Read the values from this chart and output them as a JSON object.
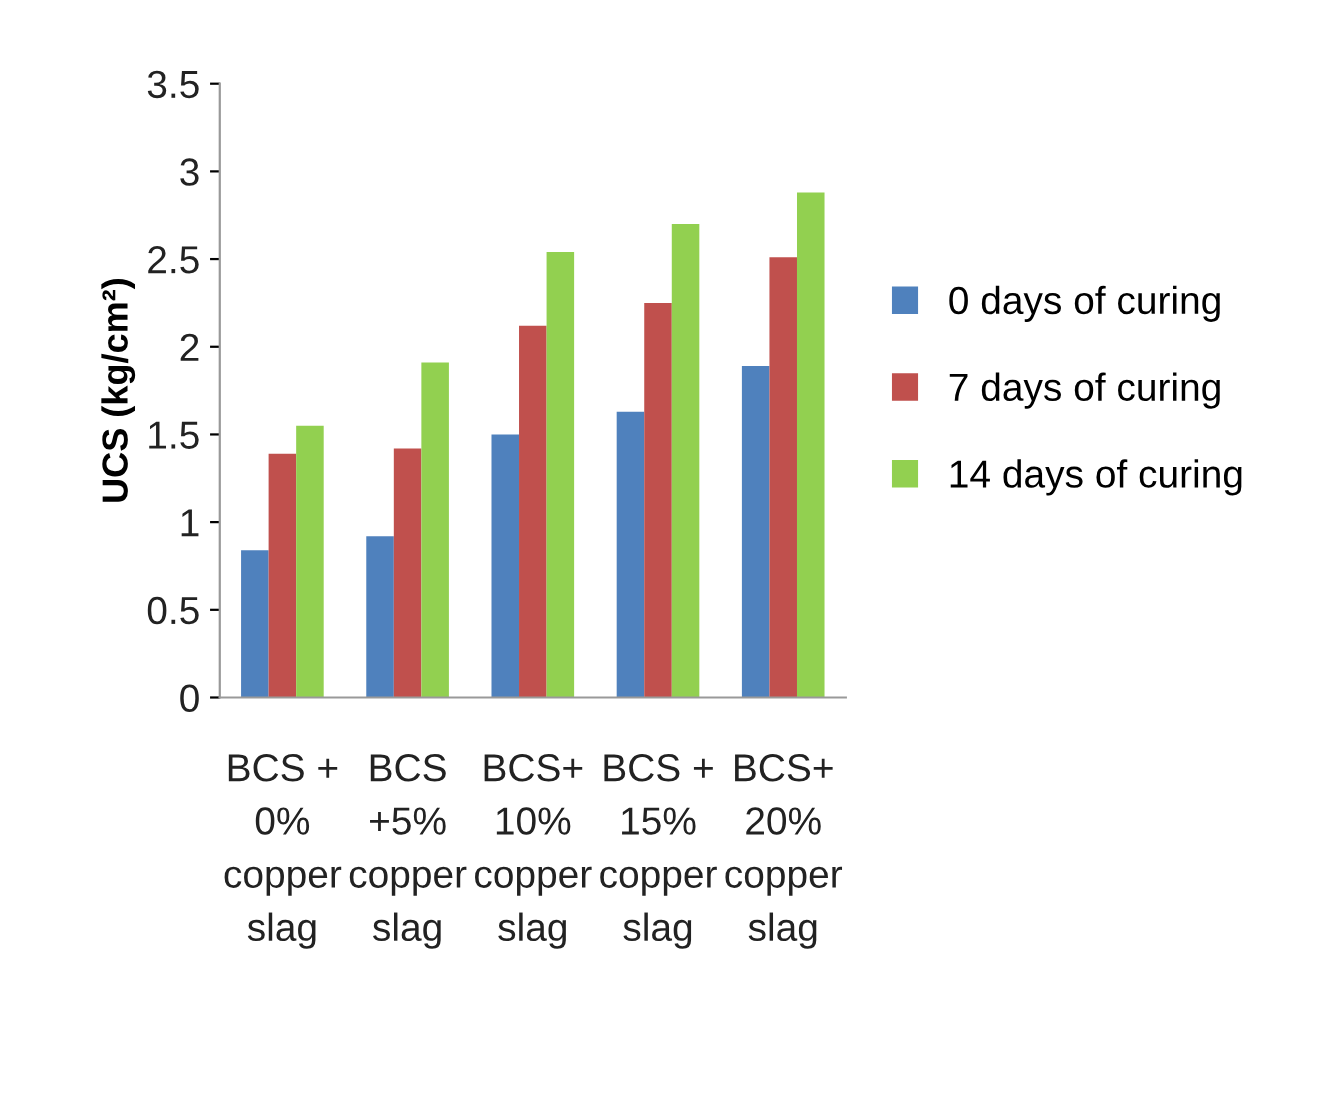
{
  "chart_data": {
    "type": "bar",
    "ylabel": "UCS (kg/cm²)",
    "categories": [
      "BCS +\n0%\ncopper\nslag",
      "BCS\n+5%\ncopper\nslag",
      "BCS+\n10%\ncopper\nslag",
      "BCS +\n15%\ncopper\nslag",
      "BCS+\n20%\ncopper\nslag"
    ],
    "series": [
      {
        "name": "0 days of curing",
        "color": "#4f81bd",
        "values": [
          0.84,
          0.92,
          1.5,
          1.63,
          1.89
        ]
      },
      {
        "name": "7 days of curing",
        "color": "#c0504d",
        "values": [
          1.39,
          1.42,
          2.12,
          2.25,
          2.51
        ]
      },
      {
        "name": "14 days of curing",
        "color": "#92d050",
        "values": [
          1.55,
          1.91,
          2.54,
          2.7,
          2.88
        ]
      }
    ],
    "ylim": [
      0,
      3.5
    ],
    "yticks": [
      0,
      0.5,
      1,
      1.5,
      2,
      2.5,
      3,
      3.5
    ],
    "grid": false,
    "legend": "right"
  }
}
